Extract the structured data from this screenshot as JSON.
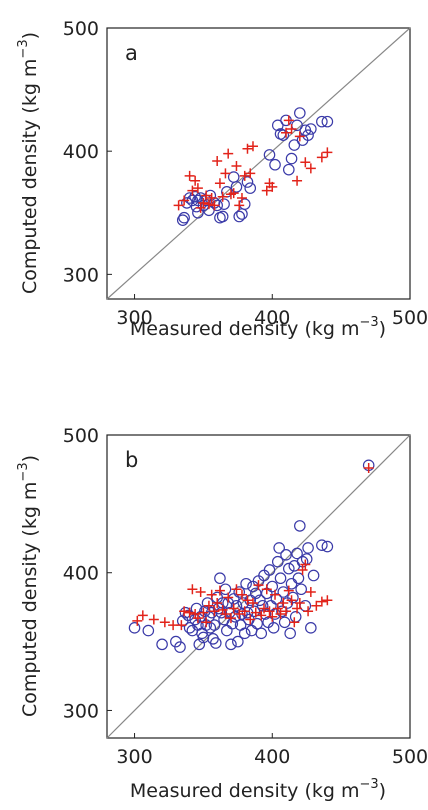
{
  "chart_data": [
    {
      "type": "scatter",
      "panel_label": "a",
      "xlabel": "Measured density (kg m",
      "xlabel_sup": "−3",
      "xlabel_close": ")",
      "ylabel": "Computed density (kg m",
      "ylabel_sup": "−3",
      "ylabel_close": ")",
      "xlim": [
        280,
        500
      ],
      "ylim": [
        280,
        500
      ],
      "xticks": [
        300,
        400,
        500
      ],
      "yticks": [
        300,
        400,
        500
      ],
      "grid": false,
      "reference_line": "1:1",
      "series": [
        {
          "marker": "circle",
          "color": "#3a3aa8",
          "points": [
            [
              335,
              344
            ],
            [
              336,
              346
            ],
            [
              338,
              358
            ],
            [
              340,
              362
            ],
            [
              342,
              360
            ],
            [
              344,
              363
            ],
            [
              345,
              355
            ],
            [
              346,
              350
            ],
            [
              346,
              360
            ],
            [
              348,
              362
            ],
            [
              350,
              356
            ],
            [
              352,
              360
            ],
            [
              354,
              352
            ],
            [
              355,
              364
            ],
            [
              358,
              358
            ],
            [
              360,
              356
            ],
            [
              362,
              346
            ],
            [
              364,
              347
            ],
            [
              365,
              357
            ],
            [
              367,
              367
            ],
            [
              372,
              379
            ],
            [
              374,
              371
            ],
            [
              376,
              347
            ],
            [
              378,
              349
            ],
            [
              380,
              357
            ],
            [
              382,
              375
            ],
            [
              384,
              370
            ],
            [
              398,
              397
            ],
            [
              402,
              389
            ],
            [
              404,
              421
            ],
            [
              406,
              414
            ],
            [
              408,
              413
            ],
            [
              410,
              425
            ],
            [
              412,
              385
            ],
            [
              414,
              394
            ],
            [
              416,
              405
            ],
            [
              418,
              421
            ],
            [
              420,
              431
            ],
            [
              422,
              409
            ],
            [
              424,
              417
            ],
            [
              426,
              413
            ],
            [
              428,
              418
            ],
            [
              436,
              424
            ],
            [
              440,
              424
            ]
          ]
        },
        {
          "marker": "plus",
          "color": "#e2231a",
          "points": [
            [
              332,
              356
            ],
            [
              336,
              360
            ],
            [
              340,
              380
            ],
            [
              342,
              368
            ],
            [
              344,
              376
            ],
            [
              346,
              370
            ],
            [
              348,
              354
            ],
            [
              350,
              358
            ],
            [
              352,
              364
            ],
            [
              354,
              357
            ],
            [
              356,
              362
            ],
            [
              358,
              356
            ],
            [
              360,
              392
            ],
            [
              362,
              374
            ],
            [
              364,
              363
            ],
            [
              366,
              382
            ],
            [
              368,
              398
            ],
            [
              370,
              365
            ],
            [
              372,
              366
            ],
            [
              374,
              388
            ],
            [
              376,
              356
            ],
            [
              378,
              362
            ],
            [
              380,
              380
            ],
            [
              382,
              402
            ],
            [
              384,
              382
            ],
            [
              386,
              404
            ],
            [
              396,
              368
            ],
            [
              398,
              374
            ],
            [
              400,
              371
            ],
            [
              410,
              415
            ],
            [
              412,
              425
            ],
            [
              414,
              418
            ],
            [
              418,
              376
            ],
            [
              420,
              412
            ],
            [
              424,
              391
            ],
            [
              428,
              386
            ],
            [
              436,
              395
            ],
            [
              440,
              399
            ]
          ]
        }
      ]
    },
    {
      "type": "scatter",
      "panel_label": "b",
      "xlabel": "Measured density (kg m",
      "xlabel_sup": "−3",
      "xlabel_close": ")",
      "ylabel": "Computed density (kg m",
      "ylabel_sup": "−3",
      "ylabel_close": ")",
      "xlim": [
        280,
        500
      ],
      "ylim": [
        280,
        500
      ],
      "xticks": [
        300,
        400,
        500
      ],
      "yticks": [
        300,
        400,
        500
      ],
      "grid": false,
      "reference_line": "1:1",
      "series": [
        {
          "marker": "circle",
          "color": "#3a3aa8",
          "points": [
            [
              300,
              360
            ],
            [
              310,
              358
            ],
            [
              320,
              348
            ],
            [
              330,
              350
            ],
            [
              333,
              346
            ],
            [
              335,
              365
            ],
            [
              337,
              371
            ],
            [
              339,
              369
            ],
            [
              340,
              360
            ],
            [
              342,
              358
            ],
            [
              344,
              366
            ],
            [
              345,
              374
            ],
            [
              346,
              362
            ],
            [
              347,
              348
            ],
            [
              348,
              368
            ],
            [
              349,
              356
            ],
            [
              350,
              353
            ],
            [
              351,
              372
            ],
            [
              352,
              362
            ],
            [
              353,
              378
            ],
            [
              354,
              368
            ],
            [
              355,
              360
            ],
            [
              356,
              371
            ],
            [
              357,
              352
            ],
            [
              358,
              362
            ],
            [
              359,
              349
            ],
            [
              360,
              382
            ],
            [
              361,
              374
            ],
            [
              362,
              396
            ],
            [
              363,
              371
            ],
            [
              364,
              378
            ],
            [
              365,
              366
            ],
            [
              366,
              388
            ],
            [
              367,
              358
            ],
            [
              368,
              378
            ],
            [
              369,
              371
            ],
            [
              370,
              348
            ],
            [
              371,
              363
            ],
            [
              372,
              381
            ],
            [
              373,
              368
            ],
            [
              374,
              376
            ],
            [
              375,
              350
            ],
            [
              376,
              386
            ],
            [
              377,
              362
            ],
            [
              378,
              370
            ],
            [
              379,
              378
            ],
            [
              380,
              356
            ],
            [
              381,
              392
            ],
            [
              382,
              371
            ],
            [
              383,
              366
            ],
            [
              384,
              380
            ],
            [
              385,
              358
            ],
            [
              386,
              390
            ],
            [
              387,
              372
            ],
            [
              388,
              385
            ],
            [
              389,
              363
            ],
            [
              390,
              394
            ],
            [
              391,
              380
            ],
            [
              392,
              356
            ],
            [
              393,
              376
            ],
            [
              394,
              398
            ],
            [
              395,
              370
            ],
            [
              396,
              385
            ],
            [
              397,
              364
            ],
            [
              398,
              402
            ],
            [
              399,
              376
            ],
            [
              400,
              390
            ],
            [
              401,
              360
            ],
            [
              402,
              370
            ],
            [
              403,
              381
            ],
            [
              404,
              408
            ],
            [
              405,
              418
            ],
            [
              406,
              396
            ],
            [
              407,
              372
            ],
            [
              408,
              386
            ],
            [
              409,
              364
            ],
            [
              410,
              413
            ],
            [
              411,
              378
            ],
            [
              412,
              403
            ],
            [
              413,
              356
            ],
            [
              414,
              392
            ],
            [
              415,
              382
            ],
            [
              416,
              405
            ],
            [
              417,
              368
            ],
            [
              418,
              414
            ],
            [
              419,
              396
            ],
            [
              420,
              434
            ],
            [
              421,
              388
            ],
            [
              422,
              408
            ],
            [
              424,
              376
            ],
            [
              425,
              410
            ],
            [
              426,
              418
            ],
            [
              428,
              360
            ],
            [
              430,
              398
            ],
            [
              436,
              420
            ],
            [
              440,
              419
            ],
            [
              470,
              478
            ]
          ]
        },
        {
          "marker": "plus",
          "color": "#e2231a",
          "points": [
            [
              302,
              365
            ],
            [
              306,
              369
            ],
            [
              314,
              366
            ],
            [
              322,
              364
            ],
            [
              328,
              362
            ],
            [
              334,
              362
            ],
            [
              336,
              372
            ],
            [
              340,
              371
            ],
            [
              342,
              388
            ],
            [
              344,
              370
            ],
            [
              346,
              367
            ],
            [
              348,
              386
            ],
            [
              350,
              371
            ],
            [
              352,
              364
            ],
            [
              354,
              376
            ],
            [
              356,
              384
            ],
            [
              358,
              372
            ],
            [
              360,
              378
            ],
            [
              362,
              387
            ],
            [
              364,
              373
            ],
            [
              366,
              370
            ],
            [
              368,
              382
            ],
            [
              370,
              367
            ],
            [
              372,
              374
            ],
            [
              374,
              388
            ],
            [
              376,
              370
            ],
            [
              378,
              384
            ],
            [
              380,
              372
            ],
            [
              382,
              380
            ],
            [
              384,
              366
            ],
            [
              386,
              378
            ],
            [
              388,
              371
            ],
            [
              390,
              391
            ],
            [
              392,
              369
            ],
            [
              394,
              374
            ],
            [
              396,
              388
            ],
            [
              398,
              372
            ],
            [
              400,
              368
            ],
            [
              402,
              384
            ],
            [
              404,
              374
            ],
            [
              406,
              370
            ],
            [
              408,
              378
            ],
            [
              410,
              372
            ],
            [
              412,
              387
            ],
            [
              414,
              380
            ],
            [
              416,
              364
            ],
            [
              418,
              374
            ],
            [
              420,
              378
            ],
            [
              422,
              402
            ],
            [
              424,
              406
            ],
            [
              426,
              372
            ],
            [
              428,
              386
            ],
            [
              432,
              376
            ],
            [
              436,
              379
            ],
            [
              440,
              380
            ],
            [
              470,
              476
            ]
          ]
        }
      ]
    }
  ]
}
